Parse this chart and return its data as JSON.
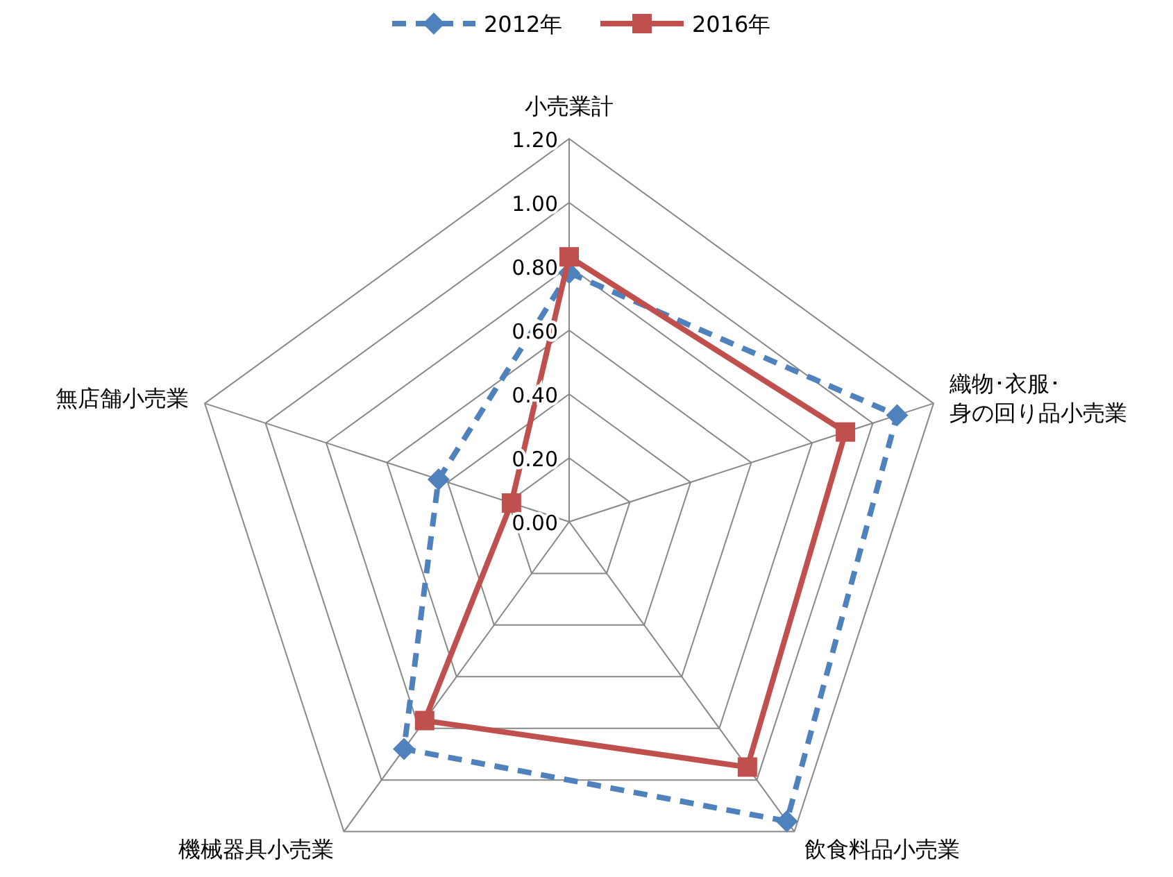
{
  "chart_data": {
    "type": "radar",
    "categories": [
      "小売業計",
      "織物･衣服･身の回り品小売業",
      "飲食料品小売業",
      "機械器具小売業",
      "無店舗小売業"
    ],
    "series": [
      {
        "name": "2012年",
        "color": "#4f81bd",
        "line_style": "dashed",
        "marker": "diamond",
        "values": [
          0.78,
          1.08,
          1.16,
          0.88,
          0.43
        ]
      },
      {
        "name": "2016年",
        "color": "#c0504d",
        "line_style": "solid",
        "marker": "square",
        "values": [
          0.83,
          0.91,
          0.95,
          0.77,
          0.19
        ]
      }
    ],
    "ylim": [
      0,
      1.2
    ],
    "yticks": [
      {
        "value": 0,
        "label": "0.00"
      },
      {
        "value": 0.2,
        "label": "0.20"
      },
      {
        "value": 0.4,
        "label": "0.40"
      },
      {
        "value": 0.6,
        "label": "0.60"
      },
      {
        "value": 0.8,
        "label": "0.80"
      },
      {
        "value": 1.0,
        "label": "1.00"
      },
      {
        "value": 1.2,
        "label": "1.20"
      }
    ],
    "grid": true,
    "legend": "top"
  }
}
